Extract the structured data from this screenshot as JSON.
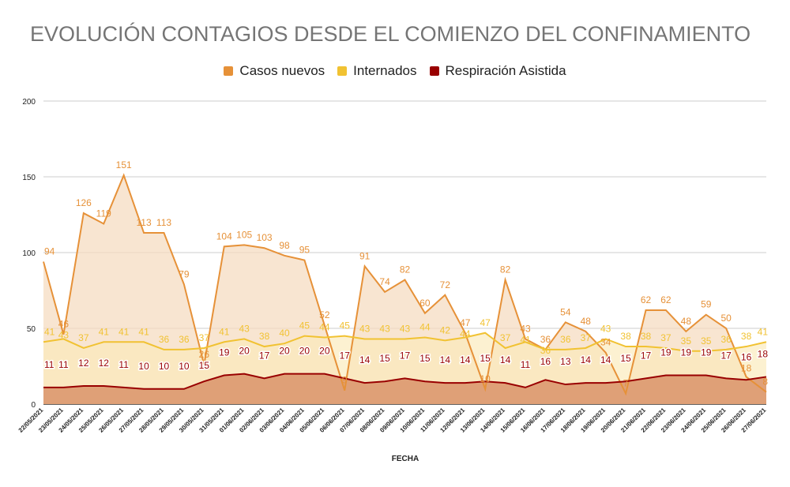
{
  "chart_data": {
    "type": "area",
    "title": "EVOLUCIÓN CONTAGIOS DESDE EL COMIENZO DEL CONFINAMIENTO",
    "xlabel": "FECHA",
    "ylabel": "",
    "ylim": [
      0,
      200
    ],
    "yticks": [
      0,
      50,
      100,
      150,
      200
    ],
    "grid": true,
    "legend_position": "top",
    "categories": [
      "22/05/2021",
      "23/05/2021",
      "24/05/2021",
      "25/05/2021",
      "26/05/2021",
      "27/05/2021",
      "28/05/2021",
      "29/05/2021",
      "30/05/2021",
      "31/05/2021",
      "01/06/2021",
      "02/06/2021",
      "03/06/2021",
      "04/06/2021",
      "05/06/2021",
      "06/06/2021",
      "07/06/2021",
      "08/06/2021",
      "09/06/2021",
      "10/06/2021",
      "11/06/2021",
      "12/06/2021",
      "13/06/2021",
      "14/06/2021",
      "15/06/2021",
      "16/06/2021",
      "17/06/2021",
      "18/06/2021",
      "19/06/2021",
      "20/06/2021",
      "21/06/2021",
      "22/06/2021",
      "23/06/2021",
      "24/06/2021",
      "25/06/2021",
      "26/06/2021",
      "27/06/2021"
    ],
    "series": [
      {
        "name": "Casos nuevos",
        "color": "#e69138",
        "fill": "#f6dcc2",
        "values": [
          94,
          46,
          126,
          119,
          151,
          113,
          113,
          79,
          26,
          104,
          105,
          103,
          98,
          95,
          52,
          9,
          91,
          74,
          82,
          60,
          72,
          47,
          10,
          82,
          43,
          36,
          54,
          48,
          34,
          7,
          62,
          62,
          48,
          59,
          50,
          18,
          8
        ]
      },
      {
        "name": "Internados",
        "color": "#f1c232",
        "fill": "#fbe9b8",
        "values": [
          41,
          43,
          37,
          41,
          41,
          41,
          36,
          36,
          37,
          41,
          43,
          38,
          40,
          45,
          44,
          45,
          43,
          43,
          43,
          44,
          42,
          44,
          47,
          37,
          41,
          36,
          36,
          37,
          43,
          38,
          38,
          37,
          35,
          35,
          36,
          38,
          41
        ]
      },
      {
        "name": "Respiración Asistida",
        "color": "#990000",
        "fill": "#d9936a",
        "values": [
          11,
          11,
          12,
          12,
          11,
          10,
          10,
          10,
          15,
          19,
          20,
          17,
          20,
          20,
          20,
          17,
          14,
          15,
          17,
          15,
          14,
          14,
          15,
          14,
          11,
          16,
          13,
          14,
          14,
          15,
          17,
          19,
          19,
          19,
          17,
          16,
          18
        ]
      }
    ]
  }
}
